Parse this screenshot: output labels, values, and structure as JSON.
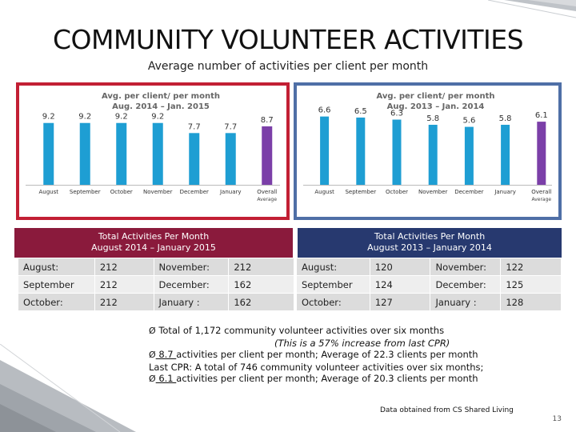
{
  "page": {
    "title": "COMMUNITY VOLUNTEER ACTIVITIES",
    "subtitle": "Average number of activities per client per month"
  },
  "colors": {
    "bar": "#1e9ed3",
    "bar_highlight": "#7b3fa8",
    "border1": "#c21f34",
    "border2": "#4f6fa6",
    "header1": "#8a1a3c",
    "header2": "#27396f"
  },
  "chart_data": [
    {
      "type": "bar",
      "title": "Avg. per client/ per month",
      "subtitle": "Aug. 2014 – Jan. 2015",
      "categories": [
        "August",
        "September",
        "October",
        "November",
        "December",
        "January",
        "Overall"
      ],
      "category_sub": "Average",
      "values": [
        9.2,
        9.2,
        9.2,
        9.2,
        7.7,
        7.7,
        8.7
      ],
      "labels": [
        "9.2",
        "9.2",
        "9.2",
        "9.2",
        "7.7",
        "7.7",
        "8.7"
      ],
      "highlight_index": 6,
      "ylim": [
        0,
        10
      ],
      "grid": false
    },
    {
      "type": "bar",
      "title": "Avg. per client/ per month",
      "subtitle": "Aug. 2013 – Jan. 2014",
      "categories": [
        "August",
        "September",
        "October",
        "November",
        "December",
        "January",
        "Overall"
      ],
      "category_sub": "Average",
      "values": [
        6.6,
        6.5,
        6.3,
        5.8,
        5.6,
        5.8,
        6.1
      ],
      "labels": [
        "6.6",
        "6.5",
        "6.3",
        "5.8",
        "5.6",
        "5.8",
        "6.1"
      ],
      "highlight_index": 6,
      "ylim": [
        0,
        7.5
      ],
      "grid": false
    }
  ],
  "table1": {
    "header_line1": "Total Activities Per Month",
    "header_line2": "August 2014 – January 2015",
    "rows": [
      [
        "August:",
        "212",
        "November:",
        "212"
      ],
      [
        "September",
        "212",
        "December:",
        "162"
      ],
      [
        "October:",
        "212",
        "January :",
        "162"
      ]
    ]
  },
  "table2": {
    "header_line1": "Total Activities Per Month",
    "header_line2": "August 2013 – January 2014",
    "rows": [
      [
        "August:",
        "120",
        "November:",
        "122"
      ],
      [
        "September",
        "124",
        "December:",
        "125"
      ],
      [
        "October:",
        "127",
        "January :",
        "128"
      ]
    ]
  },
  "notes": {
    "bullet": "Ø",
    "line1": "Total of 1,172 community volunteer activities over six months",
    "line2": "(This is a 57% increase from last CPR)",
    "line3_value": " 8.7 ",
    "line3_text": "activities per client per month; Average of 22.3 clients per month",
    "line4": "Last CPR: A total of 746 community volunteer activities over six months;",
    "line5_value": " 6.1 ",
    "line5_text": "activities per client per month; Average of 20.3 clients per month"
  },
  "footer": {
    "source": "Data obtained from CS Shared Living",
    "page_number": "13"
  }
}
